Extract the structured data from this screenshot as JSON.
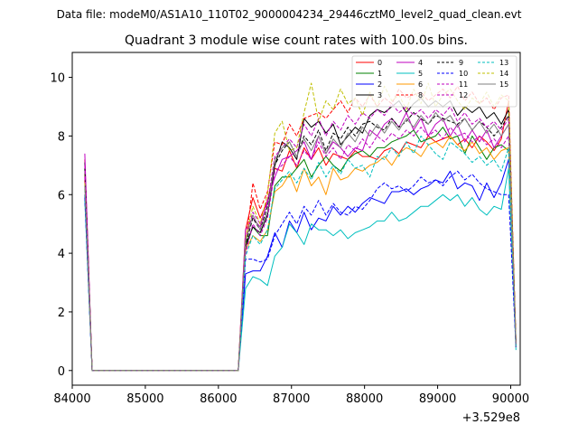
{
  "figure": {
    "suptitle": "Data file: modeM0/AS1A10_110T02_9000004234_29446cztM0_level2_quad_clean.evt",
    "offset_label": "+3.529e8"
  },
  "chart_data": {
    "type": "line",
    "title": "Quadrant 3 module wise count rates with 100.0s bins.",
    "xlabel": "",
    "ylabel": "",
    "xlim": [
      84000,
      90130
    ],
    "ylim": [
      -0.5,
      10.85
    ],
    "x_offset": 352900000,
    "x_ticks": [
      84000,
      85000,
      86000,
      87000,
      88000,
      89000,
      90000
    ],
    "x_tick_labels": [
      "84000",
      "85000",
      "86000",
      "87000",
      "88000",
      "89000",
      "90000"
    ],
    "y_ticks": [
      0,
      2,
      4,
      6,
      8,
      10
    ],
    "y_tick_labels": [
      "0",
      "2",
      "4",
      "6",
      "8",
      "10"
    ],
    "grid": false,
    "legend_position": "top-right",
    "x": [
      84172,
      84272,
      84372,
      84472,
      84572,
      84672,
      84772,
      84872,
      84972,
      85072,
      85172,
      85272,
      85372,
      85472,
      85572,
      85672,
      85772,
      85872,
      85972,
      86072,
      86172,
      86272,
      86372,
      86472,
      86572,
      86672,
      86772,
      86872,
      86972,
      87072,
      87172,
      87272,
      87372,
      87472,
      87572,
      87672,
      87772,
      87872,
      87972,
      88072,
      88172,
      88272,
      88372,
      88472,
      88572,
      88672,
      88772,
      88872,
      88972,
      89072,
      89172,
      89272,
      89372,
      89472,
      89572,
      89672,
      89772,
      89872,
      89972,
      90072
    ],
    "series": [
      {
        "name": "0",
        "color": "#ff0000",
        "dash": "solid",
        "values": [
          7.2,
          0,
          0,
          0,
          0,
          0,
          0,
          0,
          0,
          0,
          0,
          0,
          0,
          0,
          0,
          0,
          0,
          0,
          0,
          0,
          0,
          0,
          4.8,
          5.9,
          5.2,
          5.8,
          6.9,
          6.8,
          7.5,
          6.9,
          7.6,
          7.2,
          7.6,
          7.0,
          7.4,
          7.3,
          7.2,
          7.5,
          7.3,
          7.3,
          7.2,
          7.5,
          7.6,
          7.4,
          7.8,
          7.7,
          7.6,
          8.0,
          7.8,
          7.9,
          8.0,
          7.7,
          7.9,
          7.6,
          8.0,
          7.8,
          7.5,
          7.9,
          9.2,
          0.8
        ]
      },
      {
        "name": "1",
        "color": "#008000",
        "dash": "solid",
        "values": [
          6.9,
          0,
          0,
          0,
          0,
          0,
          0,
          0,
          0,
          0,
          0,
          0,
          0,
          0,
          0,
          0,
          0,
          0,
          0,
          0,
          0,
          0,
          4.3,
          4.9,
          4.6,
          4.6,
          6.3,
          6.6,
          6.6,
          6.9,
          7.2,
          6.6,
          7.0,
          7.3,
          7.0,
          6.8,
          7.2,
          7.4,
          7.5,
          7.3,
          7.6,
          7.6,
          7.8,
          7.9,
          8.0,
          8.2,
          7.8,
          7.9,
          8.0,
          8.3,
          7.9,
          8.0,
          7.4,
          8.0,
          7.6,
          7.2,
          7.6,
          7.7,
          7.5,
          0.9
        ]
      },
      {
        "name": "2",
        "color": "#0000ff",
        "dash": "solid",
        "values": [
          6.0,
          0,
          0,
          0,
          0,
          0,
          0,
          0,
          0,
          0,
          0,
          0,
          0,
          0,
          0,
          0,
          0,
          0,
          0,
          0,
          0,
          0,
          3.3,
          3.4,
          3.4,
          3.9,
          4.7,
          4.2,
          5.1,
          4.7,
          5.4,
          4.8,
          5.2,
          5.1,
          5.6,
          5.3,
          5.6,
          5.4,
          5.7,
          5.9,
          5.8,
          5.7,
          6.1,
          6.1,
          6.2,
          6.0,
          6.2,
          6.3,
          6.5,
          6.4,
          6.8,
          6.2,
          6.4,
          6.3,
          5.8,
          6.4,
          5.9,
          6.4,
          7.2,
          0.8
        ]
      },
      {
        "name": "3",
        "color": "#000000",
        "dash": "solid",
        "values": [
          7.1,
          0,
          0,
          0,
          0,
          0,
          0,
          0,
          0,
          0,
          0,
          0,
          0,
          0,
          0,
          0,
          0,
          0,
          0,
          0,
          0,
          0,
          4.2,
          4.9,
          4.7,
          5.3,
          7.0,
          7.8,
          7.6,
          7.2,
          8.6,
          8.3,
          8.5,
          8.1,
          8.4,
          7.7,
          8.0,
          8.3,
          8.1,
          8.7,
          8.9,
          8.8,
          9.0,
          9.2,
          8.8,
          9.1,
          9.3,
          9.0,
          9.2,
          9.0,
          9.2,
          8.7,
          9.0,
          8.8,
          9.0,
          8.6,
          8.8,
          8.4,
          8.9,
          1.0
        ]
      },
      {
        "name": "4",
        "color": "#bf00bf",
        "dash": "solid",
        "values": [
          7.4,
          0,
          0,
          0,
          0,
          0,
          0,
          0,
          0,
          0,
          0,
          0,
          0,
          0,
          0,
          0,
          0,
          0,
          0,
          0,
          0,
          0,
          4.8,
          5.2,
          4.9,
          5.8,
          6.6,
          7.2,
          7.3,
          7.5,
          7.8,
          7.2,
          8.0,
          7.4,
          7.8,
          7.6,
          7.3,
          7.6,
          7.5,
          8.2,
          8.0,
          8.4,
          8.6,
          8.3,
          8.8,
          8.2,
          8.6,
          8.0,
          8.4,
          8.6,
          8.0,
          8.4,
          7.8,
          8.2,
          7.8,
          8.2,
          7.6,
          8.0,
          8.4,
          0.9
        ]
      },
      {
        "name": "5",
        "color": "#00bfbf",
        "dash": "solid",
        "values": [
          5.8,
          0,
          0,
          0,
          0,
          0,
          0,
          0,
          0,
          0,
          0,
          0,
          0,
          0,
          0,
          0,
          0,
          0,
          0,
          0,
          0,
          0,
          2.8,
          3.2,
          3.1,
          2.9,
          3.9,
          4.2,
          5.0,
          4.7,
          4.3,
          5.0,
          4.8,
          4.8,
          4.6,
          4.8,
          4.5,
          4.7,
          4.8,
          4.9,
          5.1,
          5.1,
          5.4,
          5.1,
          5.2,
          5.4,
          5.6,
          5.6,
          5.8,
          6.0,
          5.8,
          6.0,
          5.6,
          5.9,
          5.5,
          5.3,
          5.6,
          5.5,
          6.9,
          0.7
        ]
      },
      {
        "name": "6",
        "color": "#ff9900",
        "dash": "solid",
        "values": [
          6.7,
          0,
          0,
          0,
          0,
          0,
          0,
          0,
          0,
          0,
          0,
          0,
          0,
          0,
          0,
          0,
          0,
          0,
          0,
          0,
          0,
          0,
          4.1,
          4.6,
          4.4,
          4.8,
          6.1,
          6.3,
          6.7,
          6.1,
          6.9,
          6.3,
          6.6,
          6.0,
          6.9,
          6.5,
          6.6,
          6.9,
          6.8,
          7.0,
          7.1,
          7.3,
          7.0,
          7.4,
          7.6,
          7.5,
          7.3,
          7.7,
          7.8,
          7.6,
          8.0,
          7.7,
          7.5,
          7.8,
          7.4,
          7.6,
          7.2,
          7.5,
          7.6,
          0.8
        ]
      },
      {
        "name": "8",
        "color": "#ff0000",
        "dash": "dashed",
        "values": [
          6.5,
          0,
          0,
          0,
          0,
          0,
          0,
          0,
          0,
          0,
          0,
          0,
          0,
          0,
          0,
          0,
          0,
          0,
          0,
          0,
          0,
          0,
          4.2,
          6.4,
          5.5,
          6.1,
          7.8,
          7.7,
          8.4,
          8.0,
          8.6,
          8.7,
          8.8,
          8.6,
          8.9,
          9.2,
          8.8,
          9.3,
          9.0,
          9.4,
          9.0,
          9.3,
          9.1,
          9.6,
          9.3,
          9.4,
          9.5,
          9.2,
          9.4,
          9.6,
          9.3,
          9.7,
          9.2,
          9.5,
          9.1,
          9.3,
          8.9,
          9.3,
          9.4,
          1.0
        ]
      },
      {
        "name": "9",
        "color": "#000000",
        "dash": "dashed",
        "values": [
          6.9,
          0,
          0,
          0,
          0,
          0,
          0,
          0,
          0,
          0,
          0,
          0,
          0,
          0,
          0,
          0,
          0,
          0,
          0,
          0,
          0,
          0,
          4.3,
          5.2,
          4.8,
          5.6,
          7.0,
          7.5,
          7.8,
          7.3,
          8.0,
          7.7,
          8.2,
          7.5,
          8.1,
          7.9,
          8.3,
          8.0,
          8.4,
          8.5,
          8.3,
          8.2,
          8.6,
          8.3,
          8.5,
          8.8,
          8.6,
          8.4,
          8.7,
          8.6,
          8.5,
          8.4,
          8.6,
          8.2,
          8.5,
          8.3,
          8.0,
          8.3,
          8.7,
          0.9
        ]
      },
      {
        "name": "10",
        "color": "#0000ff",
        "dash": "dashed",
        "values": [
          5.9,
          0,
          0,
          0,
          0,
          0,
          0,
          0,
          0,
          0,
          0,
          0,
          0,
          0,
          0,
          0,
          0,
          0,
          0,
          0,
          0,
          0,
          3.8,
          3.8,
          3.7,
          3.8,
          4.6,
          5.0,
          5.4,
          5.0,
          5.6,
          5.3,
          5.8,
          5.3,
          5.7,
          5.4,
          5.3,
          5.6,
          5.5,
          5.8,
          6.2,
          6.4,
          6.2,
          6.3,
          6.1,
          6.3,
          6.6,
          6.4,
          6.5,
          6.3,
          6.6,
          6.8,
          6.5,
          6.7,
          6.4,
          6.2,
          6.1,
          6.0,
          6.0,
          0.8
        ]
      },
      {
        "name": "11",
        "color": "#bf00bf",
        "dash": "dashed",
        "values": [
          7.0,
          0,
          0,
          0,
          0,
          0,
          0,
          0,
          0,
          0,
          0,
          0,
          0,
          0,
          0,
          0,
          0,
          0,
          0,
          0,
          0,
          0,
          4.5,
          5.4,
          5.0,
          5.7,
          7.3,
          7.6,
          7.9,
          7.6,
          8.4,
          8.0,
          8.6,
          8.0,
          8.5,
          8.2,
          8.7,
          8.4,
          8.8,
          8.6,
          8.9,
          8.7,
          9.1,
          8.8,
          9.0,
          8.7,
          8.9,
          8.6,
          8.9,
          8.7,
          9.0,
          8.5,
          8.8,
          8.4,
          8.6,
          8.3,
          8.5,
          8.2,
          8.6,
          0.9
        ]
      },
      {
        "name": "12",
        "color": "#bf00bf",
        "dash": "dashed",
        "values": [
          6.6,
          0,
          0,
          0,
          0,
          0,
          0,
          0,
          0,
          0,
          0,
          0,
          0,
          0,
          0,
          0,
          0,
          0,
          0,
          0,
          0,
          0,
          4.0,
          5.0,
          4.6,
          5.2,
          6.8,
          7.0,
          7.3,
          7.0,
          7.5,
          7.2,
          7.8,
          7.3,
          7.6,
          7.2,
          7.7,
          7.5,
          7.9,
          7.6,
          8.0,
          7.8,
          8.1,
          7.9,
          8.2,
          8.0,
          8.3,
          8.0,
          8.2,
          7.9,
          8.3,
          8.0,
          8.1,
          7.8,
          8.0,
          7.7,
          7.9,
          7.6,
          8.0,
          0.8
        ]
      },
      {
        "name": "13",
        "color": "#00bfbf",
        "dash": "dashed",
        "values": [
          6.2,
          0,
          0,
          0,
          0,
          0,
          0,
          0,
          0,
          0,
          0,
          0,
          0,
          0,
          0,
          0,
          0,
          0,
          0,
          0,
          0,
          0,
          3.9,
          4.6,
          4.3,
          4.8,
          6.2,
          6.5,
          6.8,
          6.4,
          6.9,
          6.5,
          7.1,
          6.6,
          7.0,
          6.7,
          7.2,
          6.9,
          7.0,
          6.6,
          7.3,
          7.2,
          7.6,
          7.3,
          7.8,
          7.4,
          8.0,
          7.7,
          7.4,
          7.2,
          7.8,
          7.6,
          7.4,
          7.1,
          7.3,
          7.0,
          7.2,
          6.8,
          7.6,
          0.8
        ]
      },
      {
        "name": "14",
        "color": "#bfbf00",
        "dash": "dashed",
        "values": [
          6.4,
          0,
          0,
          0,
          0,
          0,
          0,
          0,
          0,
          0,
          0,
          0,
          0,
          0,
          0,
          0,
          0,
          0,
          0,
          0,
          0,
          0,
          4.5,
          5.6,
          5.0,
          6.0,
          8.1,
          8.5,
          7.5,
          7.6,
          8.8,
          9.8,
          8.5,
          9.2,
          8.9,
          9.6,
          9.1,
          9.3,
          8.7,
          9.5,
          9.0,
          9.7,
          9.2,
          9.4,
          8.9,
          9.6,
          9.1,
          9.8,
          9.0,
          9.4,
          9.6,
          9.2,
          8.9,
          9.3,
          9.1,
          9.5,
          9.0,
          9.4,
          9.2,
          1.0
        ]
      },
      {
        "name": "15",
        "color": "#808080",
        "dash": "solid",
        "values": [
          6.3,
          0,
          0,
          0,
          0,
          0,
          0,
          0,
          0,
          0,
          0,
          0,
          0,
          0,
          0,
          0,
          0,
          0,
          0,
          0,
          0,
          0,
          4.4,
          5.3,
          4.8,
          5.4,
          7.2,
          7.6,
          7.8,
          7.3,
          7.9,
          7.5,
          8.0,
          7.4,
          7.9,
          7.6,
          8.1,
          7.8,
          8.3,
          8.0,
          8.4,
          8.1,
          8.5,
          8.2,
          8.6,
          8.3,
          8.7,
          8.4,
          8.8,
          8.5,
          8.7,
          8.3,
          8.6,
          8.2,
          8.5,
          8.1,
          8.4,
          8.0,
          8.4,
          0.9
        ]
      }
    ]
  }
}
